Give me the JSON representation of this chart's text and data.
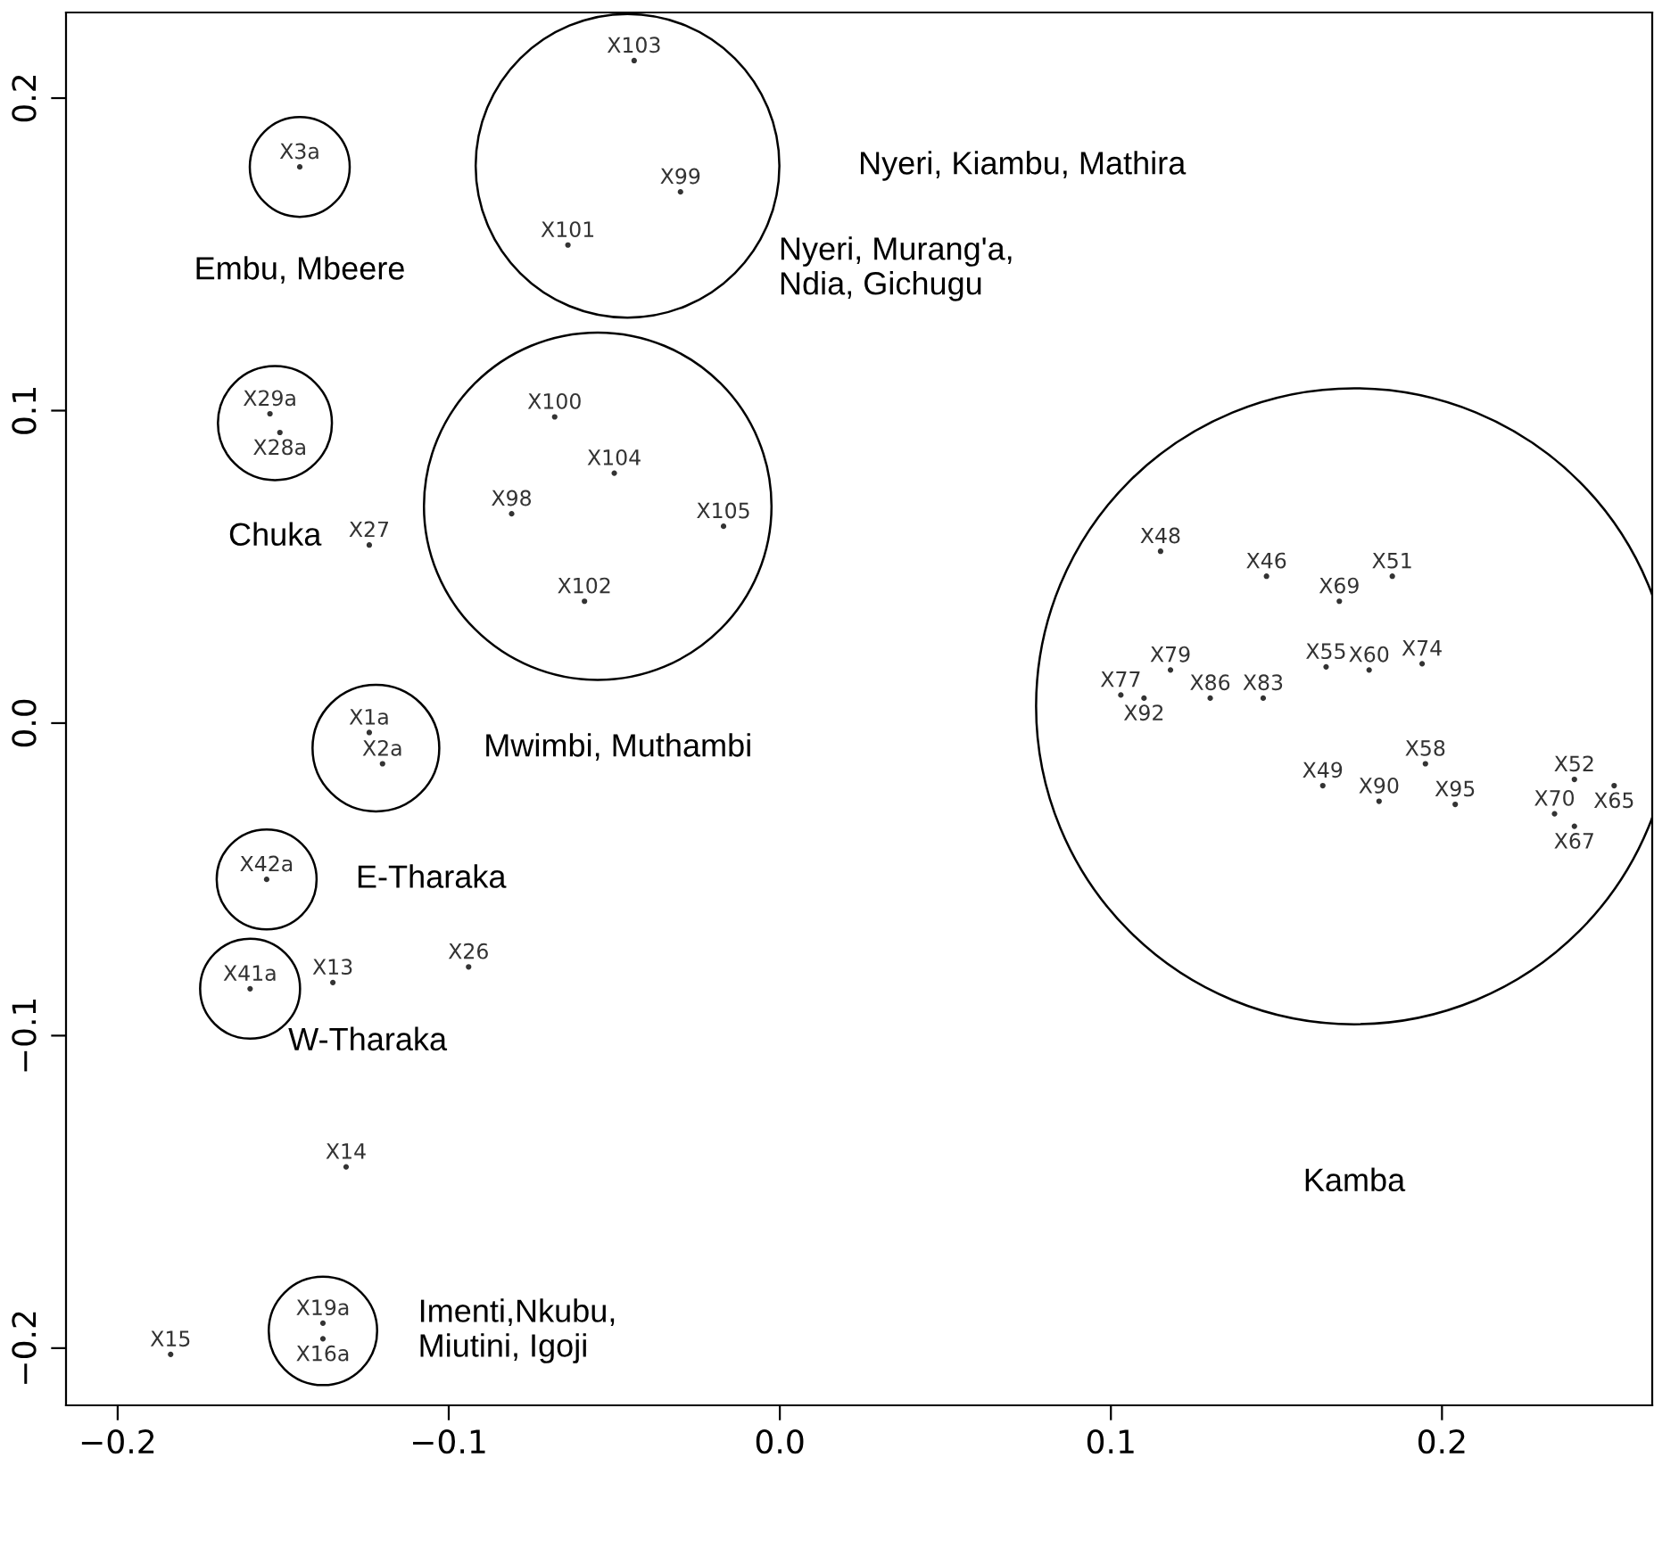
{
  "chart_data": {
    "type": "scatter",
    "marker": "circle",
    "grid": false,
    "xlim": [
      -0.2156,
      0.2635
    ],
    "ylim": [
      -0.2183,
      0.2274
    ],
    "xticks": [
      {
        "value": -0.2,
        "label": "−0.2"
      },
      {
        "value": -0.1,
        "label": "−0.1"
      },
      {
        "value": 0.0,
        "label": "0.0"
      },
      {
        "value": 0.1,
        "label": "0.1"
      },
      {
        "value": 0.2,
        "label": "0.2"
      }
    ],
    "yticks": [
      {
        "value": -0.2,
        "label": "−0.2"
      },
      {
        "value": -0.1,
        "label": "−0.1"
      },
      {
        "value": 0.0,
        "label": "0.0"
      },
      {
        "value": 0.1,
        "label": "0.1"
      },
      {
        "value": 0.2,
        "label": "0.2"
      }
    ],
    "series": [
      {
        "color": "#333333",
        "x": [
          -0.145
        ],
        "values": [
          0.178
        ],
        "value_labels": [
          "X3a"
        ]
      },
      {
        "color": "#333333",
        "x": [
          -0.044,
          -0.03,
          -0.064
        ],
        "values": [
          0.212,
          0.17,
          0.153
        ],
        "value_labels": [
          "X103",
          "X99",
          "X101"
        ]
      },
      {
        "color": "#333333",
        "x": [
          -0.068,
          -0.05,
          -0.081,
          -0.017,
          -0.059
        ],
        "values": [
          0.098,
          0.08,
          0.067,
          0.063,
          0.039
        ],
        "value_labels": [
          "X100",
          "X104",
          "X98",
          "X105",
          "X102"
        ]
      },
      {
        "color": "#333333",
        "x": [
          -0.154,
          -0.151
        ],
        "values": [
          0.099,
          0.093
        ],
        "value_labels": [
          "X29a",
          "X28a"
        ]
      },
      {
        "color": "#333333",
        "x": [
          -0.124,
          -0.12
        ],
        "values": [
          -0.003,
          -0.013
        ],
        "value_labels": [
          "X1a",
          "X2a"
        ]
      },
      {
        "color": "#333333",
        "x": [
          -0.155
        ],
        "values": [
          -0.05
        ],
        "value_labels": [
          "X42a"
        ]
      },
      {
        "color": "#333333",
        "x": [
          -0.16
        ],
        "values": [
          -0.085
        ],
        "value_labels": [
          "X41a"
        ]
      },
      {
        "color": "#333333",
        "x": [
          0.115,
          0.147,
          0.185,
          0.169,
          0.118,
          0.103,
          0.11,
          0.13,
          0.146,
          0.165,
          0.178,
          0.194,
          0.195,
          0.164,
          0.181,
          0.204,
          0.24,
          0.252,
          0.234,
          0.24
        ],
        "values": [
          0.055,
          0.047,
          0.047,
          0.039,
          0.017,
          0.009,
          0.008,
          0.008,
          0.008,
          0.018,
          0.017,
          0.019,
          -0.013,
          -0.02,
          -0.025,
          -0.026,
          -0.018,
          -0.02,
          -0.029,
          -0.033
        ],
        "value_labels": [
          "X48",
          "X46",
          "X51",
          "X69",
          "X79",
          "X77",
          "X92",
          "X86",
          "X83",
          "X55",
          "X60",
          "X74",
          "X58",
          "X49",
          "X90",
          "X95",
          "X52",
          "X65",
          "X70",
          "X67"
        ]
      },
      {
        "color": "#333333",
        "x": [
          -0.138,
          -0.138
        ],
        "values": [
          -0.192,
          -0.197
        ],
        "value_labels": [
          "X19a",
          "X16a"
        ]
      },
      {
        "color": "#333333",
        "x": [
          -0.124,
          -0.135,
          -0.094,
          -0.131,
          -0.184
        ],
        "values": [
          0.057,
          -0.083,
          -0.078,
          -0.142,
          -0.202
        ],
        "value_labels": [
          "X27",
          "X13",
          "X26",
          "X14",
          "X15"
        ]
      }
    ],
    "annotations": [
      "Embu, Mbeere",
      "Nyeri, Kiambu, Mathira",
      "Nyeri, Murang'a,\nNdia, Gichugu",
      "Chuka",
      "Mwimbi, Muthambi",
      "E-Tharaka",
      "W-Tharaka",
      "Kamba",
      "Imenti,Nkubu,\nMiutini, Igoji"
    ]
  }
}
